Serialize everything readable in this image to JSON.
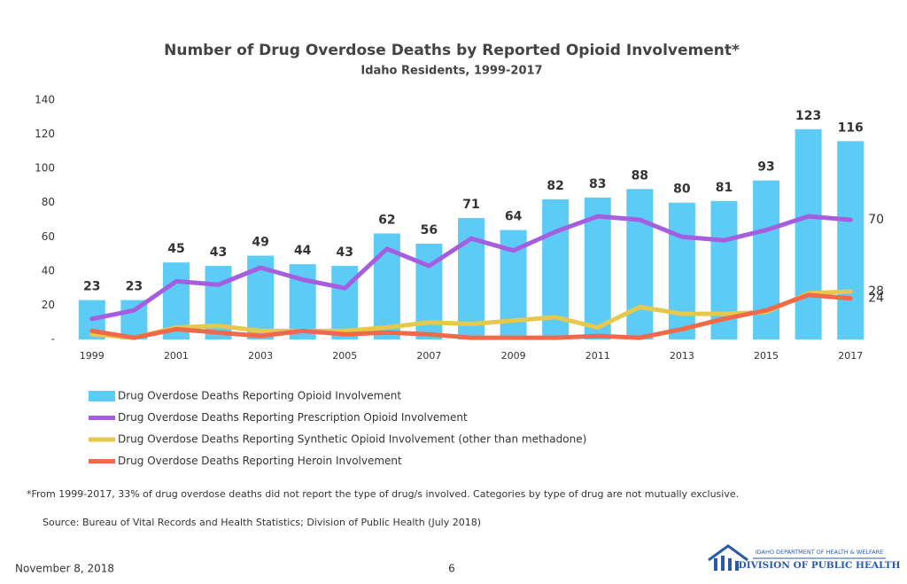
{
  "chart_data": {
    "type": "bar",
    "title": "Number of Drug Overdose Deaths by Reported Opioid Involvement*",
    "subtitle": "Idaho Residents, 1999-2017",
    "categories": [
      "1999",
      null,
      "2001",
      null,
      "2003",
      null,
      "2005",
      null,
      "2007",
      null,
      "2009",
      null,
      "2011",
      null,
      "2013",
      null,
      "2015",
      null,
      "2017"
    ],
    "series": [
      {
        "name": "Drug Overdose Deaths Reporting Opioid Involvement",
        "type": "bar",
        "color": "#5ccbf6",
        "labels": "all",
        "values": [
          23,
          23,
          45,
          43,
          49,
          44,
          43,
          62,
          56,
          71,
          64,
          82,
          83,
          88,
          80,
          81,
          93,
          123,
          116
        ]
      },
      {
        "name": "Drug Overdose Deaths Reporting Prescription Opioid Involvement",
        "type": "line",
        "color": "#a65ee0",
        "labels": "last",
        "values": [
          12,
          17,
          34,
          32,
          42,
          35,
          30,
          53,
          43,
          59,
          52,
          63,
          72,
          70,
          60,
          58,
          64,
          72,
          70
        ]
      },
      {
        "name": "Drug Overdose Deaths Reporting Synthetic Opioid Involvement (other than methadone)",
        "type": "line",
        "color": "#e6c84b",
        "labels": "last",
        "values": [
          3,
          1,
          7,
          8,
          5,
          5,
          5,
          7,
          10,
          9,
          11,
          13,
          7,
          19,
          15,
          15,
          16,
          27,
          28
        ]
      },
      {
        "name": "Drug Overdose Deaths Reporting Heroin Involvement",
        "type": "line",
        "color": "#f2694a",
        "labels": "last",
        "values": [
          5,
          1,
          6,
          4,
          2,
          5,
          3,
          4,
          3,
          1,
          1,
          1,
          2,
          1,
          6,
          12,
          17,
          26,
          24
        ]
      }
    ],
    "ylim": [
      0,
      140
    ],
    "yticks": [
      {
        "value": 0,
        "label": "-"
      },
      20,
      40,
      60,
      80,
      100,
      120,
      140
    ],
    "grid": false
  },
  "footnote": "*From 1999-2017, 33% of drug overdose deaths did not report the type of drug/s involved. Categories by type of drug are not mutually exclusive.",
  "source": "Source: Bureau of Vital Records and Health Statistics; Division of Public Health (July 2018)",
  "footer": {
    "date": "November 8, 2018",
    "page": "6",
    "logo_top": "IDAHO DEPARTMENT OF HEALTH & WELFARE",
    "logo_bottom": "DIVISION OF PUBLIC HEALTH"
  }
}
